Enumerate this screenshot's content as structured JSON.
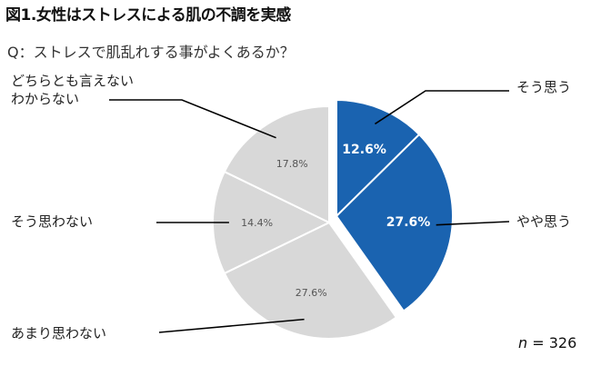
{
  "header": {
    "title": "図1.女性はストレスによる肌の不調を実感",
    "question": "Q：ストレスで肌乱れする事がよくあるか？"
  },
  "footer": {
    "n_symbol": "n",
    "n_text": " = 326"
  },
  "colors": {
    "highlight": "#1a63b0",
    "gray": "#d8d8d8",
    "separator": "#ffffff",
    "leader": "#000000"
  },
  "chart_data": {
    "type": "pie",
    "title": "図1.女性はストレスによる肌の不調を実感",
    "n": 326,
    "slices": [
      {
        "label": "そう思う",
        "value": 12.6,
        "value_label": "12.6%",
        "exploded": true,
        "color": "#1a63b0"
      },
      {
        "label": "やや思う",
        "value": 27.6,
        "value_label": "27.6%",
        "exploded": true,
        "color": "#1a63b0"
      },
      {
        "label": "あまり思わない",
        "value": 27.6,
        "value_label": "27.6%",
        "exploded": false,
        "color": "#d8d8d8"
      },
      {
        "label": "そう思わない",
        "value": 14.4,
        "value_label": "14.4%",
        "exploded": false,
        "color": "#d8d8d8"
      },
      {
        "label": "どちらとも言えない\nわからない",
        "value": 17.8,
        "value_label": "17.8%",
        "exploded": false,
        "color": "#d8d8d8"
      }
    ]
  }
}
